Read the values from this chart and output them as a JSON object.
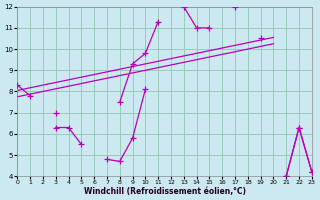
{
  "xlabel": "Windchill (Refroidissement éolien,°C)",
  "xlim": [
    0,
    23
  ],
  "ylim": [
    4,
    12
  ],
  "yticks": [
    4,
    5,
    6,
    7,
    8,
    9,
    10,
    11,
    12
  ],
  "xticks": [
    0,
    1,
    2,
    3,
    4,
    5,
    6,
    7,
    8,
    9,
    10,
    11,
    12,
    13,
    14,
    15,
    16,
    17,
    18,
    19,
    20,
    21,
    22,
    23
  ],
  "bg_color": "#cce8f0",
  "grid_color": "#99ccbb",
  "line_color": "#bb00bb",
  "series_upper": {
    "x": [
      0,
      1,
      2,
      3,
      4,
      5,
      6,
      7,
      8,
      9,
      10,
      11,
      12,
      13,
      14,
      15,
      16,
      17,
      18,
      19,
      20,
      21,
      22,
      23
    ],
    "y": [
      8.3,
      7.8,
      null,
      7.0,
      null,
      null,
      null,
      null,
      7.5,
      9.3,
      9.8,
      11.3,
      null,
      12.0,
      11.0,
      11.0,
      null,
      12.0,
      null,
      10.5,
      null,
      4.0,
      6.3,
      4.2
    ]
  },
  "series_lower": {
    "x": [
      0,
      1,
      2,
      3,
      4,
      5,
      6,
      7,
      8,
      9,
      10,
      11,
      12,
      13,
      14,
      15,
      16,
      17,
      18,
      19,
      20,
      21,
      22,
      23
    ],
    "y": [
      null,
      null,
      null,
      6.3,
      6.3,
      5.5,
      null,
      4.8,
      4.7,
      5.8,
      8.1,
      null,
      null,
      null,
      null,
      null,
      null,
      null,
      null,
      null,
      null,
      4.0,
      6.3,
      4.2
    ]
  },
  "trend1": {
    "x": [
      0,
      20
    ],
    "y": [
      8.05,
      10.55
    ]
  },
  "trend2": {
    "x": [
      0,
      20
    ],
    "y": [
      7.75,
      10.25
    ]
  }
}
